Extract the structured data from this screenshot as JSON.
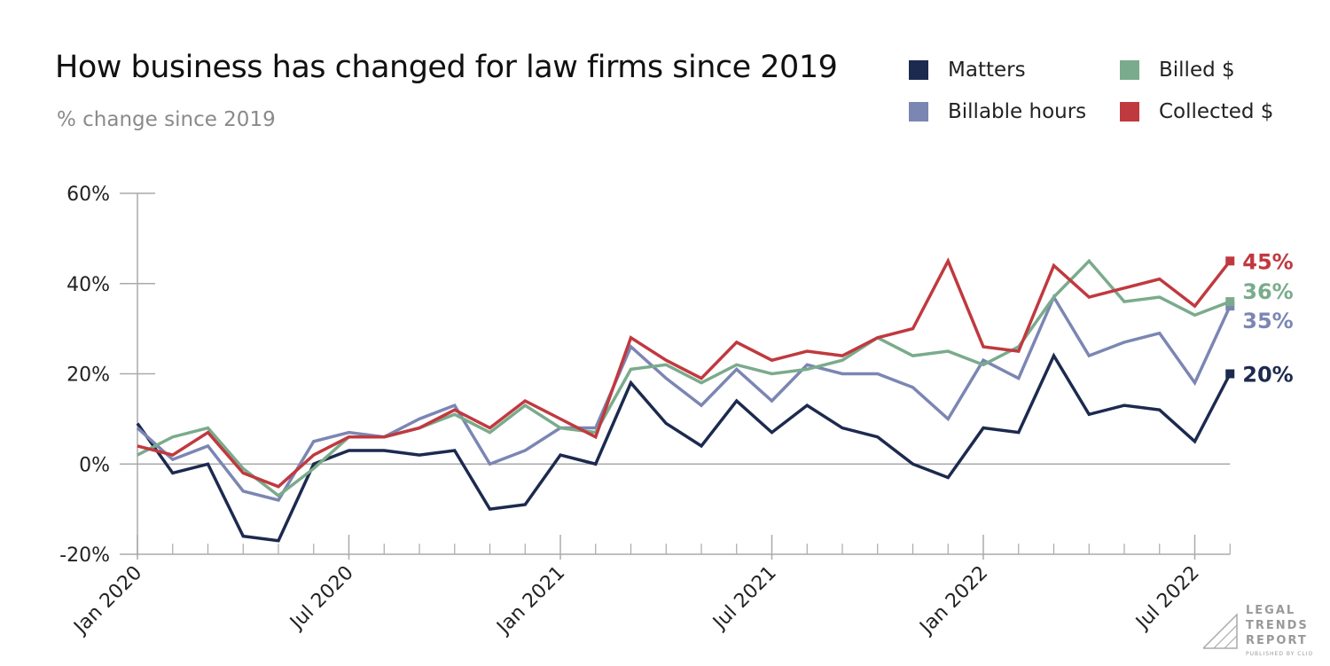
{
  "chart_data": {
    "type": "line",
    "title": "How business has changed for law firms since 2019",
    "subtitle": "% change since 2019",
    "x": [
      "Jan 2020",
      "Feb 2020",
      "Mar 2020",
      "Apr 2020",
      "May 2020",
      "Jun 2020",
      "Jul 2020",
      "Aug 2020",
      "Sep 2020",
      "Oct 2020",
      "Nov 2020",
      "Dec 2020",
      "Jan 2021",
      "Feb 2021",
      "Mar 2021",
      "Apr 2021",
      "May 2021",
      "Jun 2021",
      "Jul 2021",
      "Aug 2021",
      "Sep 2021",
      "Oct 2021",
      "Nov 2021",
      "Dec 2021",
      "Jan 2022",
      "Feb 2022",
      "Mar 2022",
      "Apr 2022",
      "May 2022",
      "Jun 2022",
      "Jul 2022",
      "Aug 2022"
    ],
    "x_tick_labels": [
      "Jan 2020",
      "Jul 2020",
      "Jan 2021",
      "Jul 2021",
      "Jan 2022",
      "Jul 2022"
    ],
    "y_tick_labels": [
      "60%",
      "40%",
      "20%",
      "0%",
      "-20%"
    ],
    "ylim": [
      -20,
      60
    ],
    "grid": false,
    "legend_position": "top-right",
    "series": [
      {
        "name": "Matters",
        "color": "#1c2a4f",
        "end_label": "20%",
        "values": [
          9,
          -2,
          0,
          -16,
          -17,
          0,
          3,
          3,
          2,
          3,
          -10,
          -9,
          2,
          0,
          18,
          9,
          4,
          14,
          7,
          13,
          8,
          6,
          0,
          -3,
          8,
          7,
          24,
          11,
          13,
          12,
          5,
          20
        ]
      },
      {
        "name": "Billable hours",
        "color": "#7b86b3",
        "end_label": "35%",
        "values": [
          8,
          1,
          4,
          -6,
          -8,
          5,
          7,
          6,
          10,
          13,
          0,
          3,
          8,
          8,
          26,
          19,
          13,
          21,
          14,
          22,
          20,
          20,
          17,
          10,
          23,
          19,
          37,
          24,
          27,
          29,
          18,
          35
        ]
      },
      {
        "name": "Billed $",
        "color": "#7aab8c",
        "end_label": "36%",
        "values": [
          2,
          6,
          8,
          -1,
          -7,
          -1,
          6,
          6,
          8,
          11,
          7,
          13,
          8,
          7,
          21,
          22,
          18,
          22,
          20,
          21,
          23,
          28,
          24,
          25,
          22,
          26,
          37,
          45,
          36,
          37,
          33,
          36
        ]
      },
      {
        "name": "Collected $",
        "color": "#c0393f",
        "end_label": "45%",
        "values": [
          4,
          2,
          7,
          -2,
          -5,
          2,
          6,
          6,
          8,
          12,
          8,
          14,
          10,
          6,
          28,
          23,
          19,
          27,
          23,
          25,
          24,
          28,
          30,
          45,
          26,
          25,
          44,
          37,
          39,
          41,
          35,
          45
        ]
      }
    ]
  },
  "logo": {
    "line1": "LEGAL",
    "line2": "TRENDS",
    "line3": "REPORT",
    "sub": "PUBLISHED BY CLIO"
  }
}
